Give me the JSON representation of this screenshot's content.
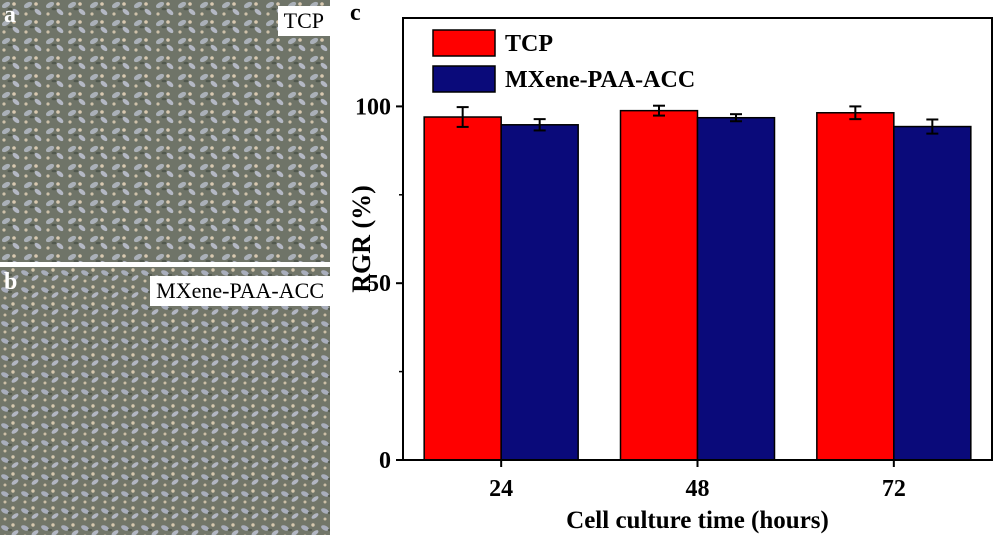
{
  "panel_a": {
    "letter": "a",
    "label": "TCP"
  },
  "panel_b": {
    "letter": "b",
    "label": "MXene-PAA-ACC"
  },
  "panel_c": {
    "letter": "c"
  },
  "colors": {
    "tcp": "#ff0000",
    "mxene": "#0a0a7a"
  },
  "chart_data": {
    "type": "bar",
    "categories": [
      "24",
      "48",
      "72"
    ],
    "series": [
      {
        "name": "TCP",
        "values": [
          97.0,
          98.8,
          98.2
        ],
        "errors": [
          2.8,
          1.4,
          1.8
        ]
      },
      {
        "name": "MXene-PAA-ACC",
        "values": [
          94.8,
          96.8,
          94.3
        ],
        "errors": [
          1.6,
          1.0,
          2.0
        ]
      }
    ],
    "xlabel": "Cell culture time (hours)",
    "ylabel": "RGR (%)",
    "ylim": [
      0,
      125
    ],
    "yticks": [
      0,
      50,
      100
    ],
    "legend": "top-left",
    "grid": false
  }
}
